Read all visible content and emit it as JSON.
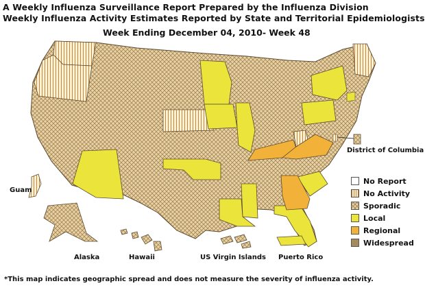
{
  "header": {
    "line1": "A Weekly Influenza Surveillance Report Prepared by the Influenza Division",
    "line2": "Weekly Influenza Activity Estimates Reported by State and Territorial Epidemiologists*",
    "week": "Week Ending December 04, 2010- Week 48"
  },
  "labels": {
    "dc": "District of Columbia",
    "guam": "Guam",
    "alaska": "Alaska",
    "hawaii": "Hawaii",
    "usvi": "US Virgin Islands",
    "pr": "Puerto Rico"
  },
  "legend": [
    {
      "level": "No Report",
      "pattern": "none",
      "color": "#ffffff"
    },
    {
      "level": "No Activity",
      "pattern": "stripes",
      "color": "#fdf3d4"
    },
    {
      "level": "Sporadic",
      "pattern": "crosshatch",
      "color": "#e6d3a6"
    },
    {
      "level": "Local",
      "pattern": "solid",
      "color": "#eae43b"
    },
    {
      "level": "Regional",
      "pattern": "solid",
      "color": "#f2b23a"
    },
    {
      "level": "Widespread",
      "pattern": "solid",
      "color": "#a58a5c"
    }
  ],
  "footnote": "*This map indicates geographic spread and does not measure the severity of influenza activity."
}
